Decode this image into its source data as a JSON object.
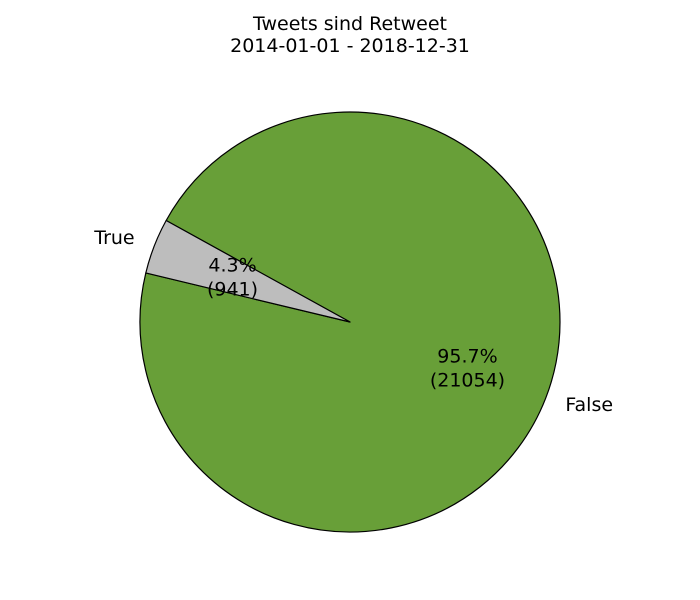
{
  "chart_data": {
    "type": "pie",
    "title": "Tweets sind Retweet",
    "subtitle": "2014-01-01 - 2018-12-31",
    "slices": [
      {
        "label": "False",
        "value": 21054,
        "percent_label": "95.7%",
        "count_label": "(21054)",
        "color": "#689f38"
      },
      {
        "label": "True",
        "value": 941,
        "percent_label": "4.3%",
        "count_label": "(941)",
        "color": "#bdbdbd"
      }
    ],
    "edge_color": "#000000"
  }
}
